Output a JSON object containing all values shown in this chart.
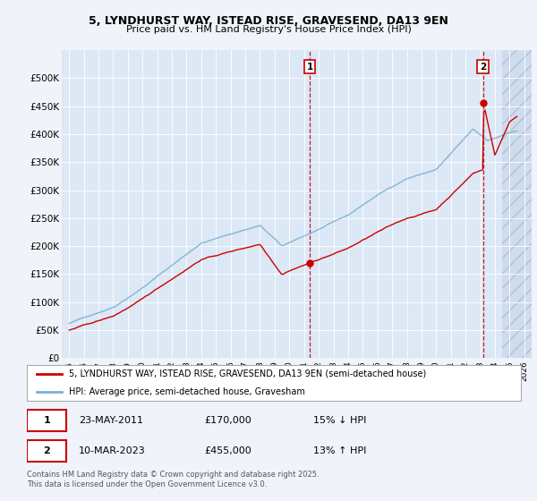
{
  "title_line1": "5, LYNDHURST WAY, ISTEAD RISE, GRAVESEND, DA13 9EN",
  "title_line2": "Price paid vs. HM Land Registry's House Price Index (HPI)",
  "ylim": [
    0,
    550000
  ],
  "yticks": [
    0,
    50000,
    100000,
    150000,
    200000,
    250000,
    300000,
    350000,
    400000,
    450000,
    500000
  ],
  "ytick_labels": [
    "£0",
    "£50K",
    "£100K",
    "£150K",
    "£200K",
    "£250K",
    "£300K",
    "£350K",
    "£400K",
    "£450K",
    "£500K"
  ],
  "background_color": "#f0f4fa",
  "plot_bg_color": "#dce8f5",
  "hatch_bg_color": "#ccdaed",
  "line_color_hpi": "#7ab0d4",
  "line_color_price": "#cc0000",
  "dashed_color": "#cc0000",
  "marker_color": "#cc0000",
  "transaction1_x": 2011.39,
  "transaction1_y": 170000,
  "transaction2_x": 2023.19,
  "transaction2_y": 455000,
  "hatch_start_x": 2024.5,
  "legend_label_price": "5, LYNDHURST WAY, ISTEAD RISE, GRAVESEND, DA13 9EN (semi-detached house)",
  "legend_label_hpi": "HPI: Average price, semi-detached house, Gravesham",
  "annotation1_date": "23-MAY-2011",
  "annotation1_price": "£170,000",
  "annotation1_hpi": "15% ↓ HPI",
  "annotation2_date": "10-MAR-2023",
  "annotation2_price": "£455,000",
  "annotation2_hpi": "13% ↑ HPI",
  "footer": "Contains HM Land Registry data © Crown copyright and database right 2025.\nThis data is licensed under the Open Government Licence v3.0.",
  "xlim_start": 1994.5,
  "xlim_end": 2026.5
}
